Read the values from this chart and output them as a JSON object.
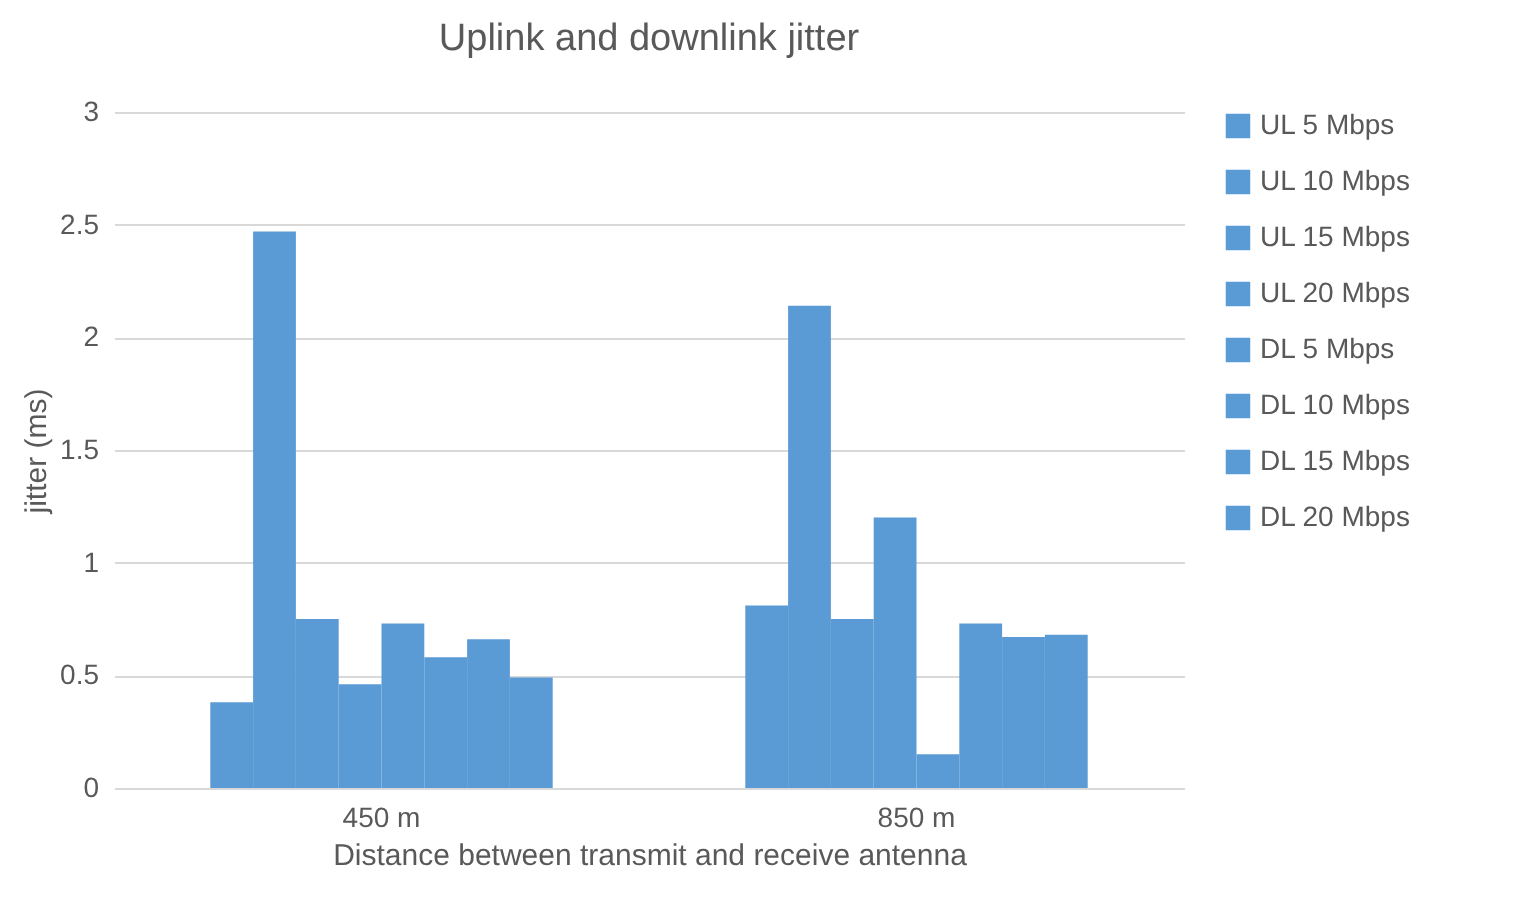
{
  "chart_data": {
    "type": "bar",
    "title": "Uplink and downlink jitter",
    "xlabel": "Distance  between transmit and receive antenna",
    "ylabel": "jitter (ms)",
    "categories": [
      "450 m",
      "850 m"
    ],
    "series": [
      {
        "name": "UL 5 Mbps",
        "color": "#5b9bd5",
        "values": [
          0.38,
          0.81
        ]
      },
      {
        "name": "UL 10 Mbps",
        "color": "#5b9bd5",
        "values": [
          2.47,
          2.14
        ]
      },
      {
        "name": "UL 15 Mbps",
        "color": "#5b9bd5",
        "values": [
          0.75,
          0.75
        ]
      },
      {
        "name": "UL 20 Mbps",
        "color": "#5b9bd5",
        "values": [
          0.46,
          1.2
        ]
      },
      {
        "name": "DL 5 Mbps",
        "color": "#5b9bd5",
        "values": [
          0.73,
          0.15
        ]
      },
      {
        "name": "DL 10 Mbps",
        "color": "#5b9bd5",
        "values": [
          0.58,
          0.73
        ]
      },
      {
        "name": "DL 15 Mbps",
        "color": "#5b9bd5",
        "values": [
          0.66,
          0.67
        ]
      },
      {
        "name": "DL 20 Mbps",
        "color": "#5b9bd5",
        "values": [
          0.49,
          0.68
        ]
      }
    ],
    "ylim": [
      0,
      3
    ],
    "yticks": [
      0,
      0.5,
      1,
      1.5,
      2,
      2.5,
      3
    ],
    "grid": "y",
    "legend": "right"
  }
}
